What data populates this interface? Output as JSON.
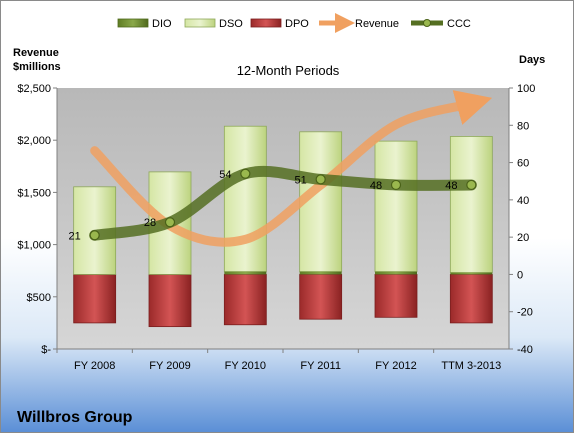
{
  "chart_data": {
    "type": "bar",
    "title": "12-Month Periods",
    "company": "Willbros Group",
    "categories": [
      "FY 2008",
      "FY 2009",
      "FY 2010",
      "FY 2011",
      "FY 2012",
      "TTM 3-2013"
    ],
    "left_axis": {
      "label_line1": "Revenue",
      "label_line2": "$millions",
      "ylim": [
        0,
        2500
      ],
      "ticks": [
        0,
        500,
        1000,
        1500,
        2000,
        2500
      ],
      "tick_labels": [
        "$-",
        "$500",
        "$1,000",
        "$1,500",
        "$2,000",
        "$2,500"
      ]
    },
    "right_axis": {
      "label": "Days",
      "ylim": [
        -40,
        100
      ],
      "ticks": [
        -40,
        -20,
        0,
        20,
        40,
        60,
        80,
        100
      ],
      "tick_labels": [
        "-40",
        "-20",
        "0",
        "20",
        "40",
        "60",
        "80",
        "100"
      ]
    },
    "series": [
      {
        "name": "DIO",
        "axis": "right",
        "kind": "stacked-bar",
        "color": "#6f8f2e",
        "values": [
          0,
          0,
          1.5,
          1.5,
          1.5,
          1
        ]
      },
      {
        "name": "DSO",
        "axis": "right",
        "kind": "stacked-bar",
        "color": "#c6dc8c",
        "values": [
          47,
          55,
          78,
          75,
          70,
          73
        ]
      },
      {
        "name": "DPO",
        "axis": "right",
        "kind": "negative-bar",
        "color": "#b83a3a",
        "values": [
          -26,
          -28,
          -27,
          -24,
          -23,
          -26
        ]
      },
      {
        "name": "Revenue",
        "axis": "left",
        "kind": "line",
        "color": "#f0a060",
        "values": [
          1900,
          1180,
          1050,
          1570,
          2150,
          2350
        ]
      },
      {
        "name": "CCC",
        "axis": "right",
        "kind": "line",
        "color": "#5e7a2a",
        "values": [
          21,
          28,
          54,
          51,
          48,
          48
        ],
        "labels": [
          "21",
          "28",
          "54",
          "51",
          "48",
          "48"
        ]
      }
    ],
    "legend": [
      "DIO",
      "DSO",
      "DPO",
      "Revenue",
      "CCC"
    ],
    "legend_position": "top",
    "grid": false
  }
}
